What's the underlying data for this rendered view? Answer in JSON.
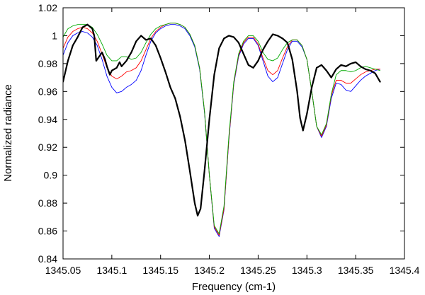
{
  "chart_data": {
    "type": "line",
    "xlabel": "Frequency (cm-1)",
    "ylabel": "Normalized radiance",
    "xlim": [
      1345.05,
      1345.4
    ],
    "ylim": [
      0.84,
      1.02
    ],
    "x_ticks": [
      1345.05,
      1345.1,
      1345.15,
      1345.2,
      1345.25,
      1345.3,
      1345.35,
      1345.4
    ],
    "x_tick_labels": [
      "1345.05",
      "1345.1",
      "1345.15",
      "1345.2",
      "1345.25",
      "1345.3",
      "1345.35",
      "1345.4"
    ],
    "y_ticks": [
      0.84,
      0.86,
      0.88,
      0.9,
      0.92,
      0.94,
      0.96,
      0.98,
      1.0,
      1.02
    ],
    "y_tick_labels": [
      "0.84",
      "0.86",
      "0.88",
      "0.9",
      "0.92",
      "0.94",
      "0.96",
      "0.98",
      "1",
      "1.02"
    ],
    "grid": false,
    "legend": "none",
    "series": [
      {
        "color": "#0000ff",
        "stroke": "thin",
        "points": [
          [
            1345.05,
            0.986
          ],
          [
            1345.055,
            0.995
          ],
          [
            1345.06,
            1.0
          ],
          [
            1345.065,
            1.002
          ],
          [
            1345.07,
            1.003
          ],
          [
            1345.075,
            1.002
          ],
          [
            1345.08,
            0.999
          ],
          [
            1345.085,
            0.993
          ],
          [
            1345.09,
            0.983
          ],
          [
            1345.095,
            0.971
          ],
          [
            1345.1,
            0.963
          ],
          [
            1345.105,
            0.959
          ],
          [
            1345.11,
            0.96
          ],
          [
            1345.115,
            0.963
          ],
          [
            1345.12,
            0.965
          ],
          [
            1345.125,
            0.968
          ],
          [
            1345.13,
            0.975
          ],
          [
            1345.135,
            0.986
          ],
          [
            1345.14,
            0.996
          ],
          [
            1345.145,
            1.002
          ],
          [
            1345.15,
            1.005
          ],
          [
            1345.155,
            1.007
          ],
          [
            1345.16,
            1.008
          ],
          [
            1345.165,
            1.008
          ],
          [
            1345.17,
            1.007
          ],
          [
            1345.175,
            1.005
          ],
          [
            1345.18,
            1.0
          ],
          [
            1345.185,
            0.992
          ],
          [
            1345.19,
            0.976
          ],
          [
            1345.195,
            0.945
          ],
          [
            1345.2,
            0.9
          ],
          [
            1345.205,
            0.862
          ],
          [
            1345.21,
            0.856
          ],
          [
            1345.215,
            0.875
          ],
          [
            1345.22,
            0.925
          ],
          [
            1345.225,
            0.965
          ],
          [
            1345.23,
            0.985
          ],
          [
            1345.235,
            0.994
          ],
          [
            1345.24,
            0.998
          ],
          [
            1345.245,
            0.998
          ],
          [
            1345.25,
            0.993
          ],
          [
            1345.255,
            0.982
          ],
          [
            1345.26,
            0.971
          ],
          [
            1345.265,
            0.967
          ],
          [
            1345.27,
            0.97
          ],
          [
            1345.275,
            0.98
          ],
          [
            1345.28,
            0.99
          ],
          [
            1345.285,
            0.996
          ],
          [
            1345.29,
            0.996
          ],
          [
            1345.295,
            0.992
          ],
          [
            1345.3,
            0.983
          ],
          [
            1345.305,
            0.96
          ],
          [
            1345.31,
            0.935
          ],
          [
            1345.315,
            0.927
          ],
          [
            1345.32,
            0.935
          ],
          [
            1345.325,
            0.955
          ],
          [
            1345.33,
            0.966
          ],
          [
            1345.335,
            0.965
          ],
          [
            1345.34,
            0.961
          ],
          [
            1345.345,
            0.96
          ],
          [
            1345.35,
            0.964
          ],
          [
            1345.355,
            0.968
          ],
          [
            1345.36,
            0.971
          ],
          [
            1345.365,
            0.973
          ],
          [
            1345.37,
            0.975
          ],
          [
            1345.375,
            0.976
          ]
        ]
      },
      {
        "color": "#ff0000",
        "stroke": "thin",
        "points": [
          [
            1345.05,
            0.991
          ],
          [
            1345.055,
            0.999
          ],
          [
            1345.06,
            1.003
          ],
          [
            1345.065,
            1.005
          ],
          [
            1345.07,
            1.006
          ],
          [
            1345.075,
            1.005
          ],
          [
            1345.08,
            1.002
          ],
          [
            1345.085,
            0.996
          ],
          [
            1345.09,
            0.987
          ],
          [
            1345.095,
            0.977
          ],
          [
            1345.1,
            0.971
          ],
          [
            1345.105,
            0.969
          ],
          [
            1345.11,
            0.971
          ],
          [
            1345.115,
            0.974
          ],
          [
            1345.12,
            0.975
          ],
          [
            1345.125,
            0.977
          ],
          [
            1345.13,
            0.982
          ],
          [
            1345.135,
            0.99
          ],
          [
            1345.14,
            0.998
          ],
          [
            1345.145,
            1.003
          ],
          [
            1345.15,
            1.006
          ],
          [
            1345.155,
            1.008
          ],
          [
            1345.16,
            1.009
          ],
          [
            1345.165,
            1.009
          ],
          [
            1345.17,
            1.008
          ],
          [
            1345.175,
            1.006
          ],
          [
            1345.18,
            1.001
          ],
          [
            1345.185,
            0.993
          ],
          [
            1345.19,
            0.977
          ],
          [
            1345.195,
            0.946
          ],
          [
            1345.2,
            0.9
          ],
          [
            1345.205,
            0.863
          ],
          [
            1345.21,
            0.857
          ],
          [
            1345.215,
            0.876
          ],
          [
            1345.22,
            0.926
          ],
          [
            1345.225,
            0.966
          ],
          [
            1345.23,
            0.986
          ],
          [
            1345.235,
            0.995
          ],
          [
            1345.24,
            0.999
          ],
          [
            1345.245,
            0.999
          ],
          [
            1345.25,
            0.994
          ],
          [
            1345.255,
            0.984
          ],
          [
            1345.26,
            0.975
          ],
          [
            1345.265,
            0.972
          ],
          [
            1345.27,
            0.975
          ],
          [
            1345.275,
            0.984
          ],
          [
            1345.28,
            0.992
          ],
          [
            1345.285,
            0.997
          ],
          [
            1345.29,
            0.997
          ],
          [
            1345.295,
            0.993
          ],
          [
            1345.3,
            0.983
          ],
          [
            1345.305,
            0.96
          ],
          [
            1345.31,
            0.935
          ],
          [
            1345.315,
            0.928
          ],
          [
            1345.32,
            0.936
          ],
          [
            1345.325,
            0.957
          ],
          [
            1345.33,
            0.968
          ],
          [
            1345.335,
            0.968
          ],
          [
            1345.34,
            0.966
          ],
          [
            1345.345,
            0.966
          ],
          [
            1345.35,
            0.969
          ],
          [
            1345.355,
            0.972
          ],
          [
            1345.36,
            0.974
          ],
          [
            1345.365,
            0.975
          ],
          [
            1345.37,
            0.976
          ],
          [
            1345.375,
            0.976
          ]
        ]
      },
      {
        "color": "#00aa00",
        "stroke": "thin",
        "points": [
          [
            1345.05,
            0.999
          ],
          [
            1345.055,
            1.005
          ],
          [
            1345.06,
            1.007
          ],
          [
            1345.065,
            1.008
          ],
          [
            1345.07,
            1.008
          ],
          [
            1345.075,
            1.008
          ],
          [
            1345.08,
            1.006
          ],
          [
            1345.085,
            1.001
          ],
          [
            1345.09,
            0.994
          ],
          [
            1345.095,
            0.986
          ],
          [
            1345.1,
            0.982
          ],
          [
            1345.105,
            0.982
          ],
          [
            1345.11,
            0.985
          ],
          [
            1345.115,
            0.985
          ],
          [
            1345.12,
            0.983
          ],
          [
            1345.125,
            0.984
          ],
          [
            1345.13,
            0.988
          ],
          [
            1345.135,
            0.995
          ],
          [
            1345.14,
            1.001
          ],
          [
            1345.145,
            1.005
          ],
          [
            1345.15,
            1.007
          ],
          [
            1345.155,
            1.008
          ],
          [
            1345.16,
            1.009
          ],
          [
            1345.165,
            1.009
          ],
          [
            1345.17,
            1.008
          ],
          [
            1345.175,
            1.006
          ],
          [
            1345.18,
            1.001
          ],
          [
            1345.185,
            0.993
          ],
          [
            1345.19,
            0.977
          ],
          [
            1345.195,
            0.946
          ],
          [
            1345.2,
            0.9
          ],
          [
            1345.205,
            0.864
          ],
          [
            1345.21,
            0.858
          ],
          [
            1345.215,
            0.878
          ],
          [
            1345.22,
            0.928
          ],
          [
            1345.225,
            0.967
          ],
          [
            1345.23,
            0.987
          ],
          [
            1345.235,
            0.996
          ],
          [
            1345.24,
            1.0
          ],
          [
            1345.245,
            1.0
          ],
          [
            1345.25,
            0.996
          ],
          [
            1345.255,
            0.988
          ],
          [
            1345.26,
            0.983
          ],
          [
            1345.265,
            0.982
          ],
          [
            1345.27,
            0.984
          ],
          [
            1345.275,
            0.99
          ],
          [
            1345.28,
            0.995
          ],
          [
            1345.285,
            0.997
          ],
          [
            1345.29,
            0.997
          ],
          [
            1345.295,
            0.993
          ],
          [
            1345.3,
            0.983
          ],
          [
            1345.305,
            0.96
          ],
          [
            1345.31,
            0.935
          ],
          [
            1345.315,
            0.929
          ],
          [
            1345.32,
            0.937
          ],
          [
            1345.325,
            0.958
          ],
          [
            1345.33,
            0.972
          ],
          [
            1345.335,
            0.975
          ],
          [
            1345.34,
            0.975
          ],
          [
            1345.345,
            0.974
          ],
          [
            1345.35,
            0.975
          ],
          [
            1345.355,
            0.977
          ],
          [
            1345.36,
            0.978
          ],
          [
            1345.365,
            0.977
          ],
          [
            1345.37,
            0.976
          ],
          [
            1345.375,
            0.975
          ]
        ]
      },
      {
        "color": "#000000",
        "stroke": "thick",
        "points": [
          [
            1345.05,
            0.967
          ],
          [
            1345.055,
            0.982
          ],
          [
            1345.06,
            0.993
          ],
          [
            1345.065,
            0.999
          ],
          [
            1345.07,
            1.006
          ],
          [
            1345.075,
            1.008
          ],
          [
            1345.08,
            1.005
          ],
          [
            1345.082,
            1.0
          ],
          [
            1345.084,
            0.982
          ],
          [
            1345.087,
            0.985
          ],
          [
            1345.09,
            0.988
          ],
          [
            1345.093,
            0.983
          ],
          [
            1345.095,
            0.978
          ],
          [
            1345.098,
            0.972
          ],
          [
            1345.1,
            0.975
          ],
          [
            1345.105,
            0.977
          ],
          [
            1345.108,
            0.981
          ],
          [
            1345.11,
            0.978
          ],
          [
            1345.115,
            0.982
          ],
          [
            1345.12,
            0.988
          ],
          [
            1345.125,
            0.996
          ],
          [
            1345.13,
            1.0
          ],
          [
            1345.135,
            0.997
          ],
          [
            1345.14,
            0.998
          ],
          [
            1345.145,
            0.993
          ],
          [
            1345.15,
            0.984
          ],
          [
            1345.155,
            0.974
          ],
          [
            1345.16,
            0.963
          ],
          [
            1345.165,
            0.955
          ],
          [
            1345.17,
            0.942
          ],
          [
            1345.175,
            0.925
          ],
          [
            1345.18,
            0.903
          ],
          [
            1345.185,
            0.88
          ],
          [
            1345.188,
            0.871
          ],
          [
            1345.191,
            0.876
          ],
          [
            1345.195,
            0.903
          ],
          [
            1345.2,
            0.94
          ],
          [
            1345.205,
            0.972
          ],
          [
            1345.21,
            0.991
          ],
          [
            1345.215,
            0.998
          ],
          [
            1345.22,
            1.0
          ],
          [
            1345.225,
            0.999
          ],
          [
            1345.23,
            0.995
          ],
          [
            1345.235,
            0.987
          ],
          [
            1345.24,
            0.979
          ],
          [
            1345.245,
            0.977
          ],
          [
            1345.25,
            0.982
          ],
          [
            1345.255,
            0.99
          ],
          [
            1345.26,
            0.996
          ],
          [
            1345.265,
            1.001
          ],
          [
            1345.27,
            1.0
          ],
          [
            1345.275,
            0.998
          ],
          [
            1345.28,
            0.995
          ],
          [
            1345.285,
            0.983
          ],
          [
            1345.29,
            0.96
          ],
          [
            1345.293,
            0.941
          ],
          [
            1345.296,
            0.932
          ],
          [
            1345.3,
            0.944
          ],
          [
            1345.305,
            0.963
          ],
          [
            1345.31,
            0.977
          ],
          [
            1345.315,
            0.979
          ],
          [
            1345.32,
            0.975
          ],
          [
            1345.325,
            0.97
          ],
          [
            1345.33,
            0.976
          ],
          [
            1345.335,
            0.979
          ],
          [
            1345.34,
            0.978
          ],
          [
            1345.345,
            0.98
          ],
          [
            1345.35,
            0.981
          ],
          [
            1345.355,
            0.978
          ],
          [
            1345.36,
            0.976
          ],
          [
            1345.365,
            0.975
          ],
          [
            1345.37,
            0.973
          ],
          [
            1345.375,
            0.967
          ]
        ]
      }
    ]
  }
}
